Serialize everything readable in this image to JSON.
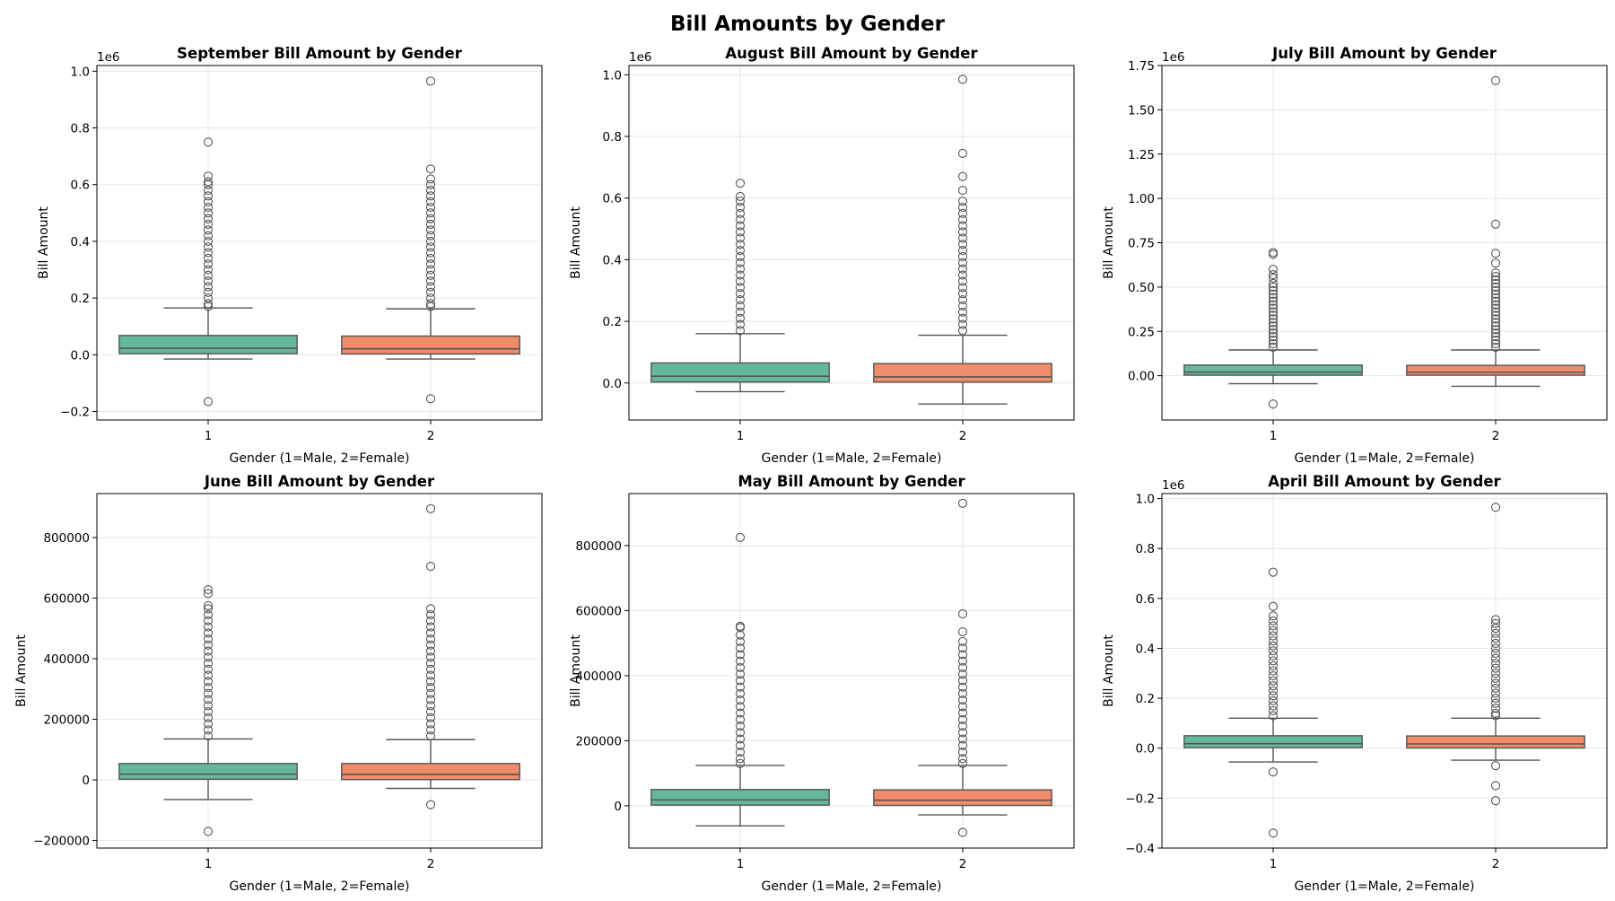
{
  "figure": {
    "title": "Bill Amounts by Gender",
    "colors": {
      "male": "#66b89b",
      "female": "#f08c6a",
      "line": "#555555",
      "grid": "#e6e6e6"
    }
  },
  "chart_data": [
    {
      "type": "box",
      "title": "September Bill Amount by Gender",
      "xlabel": "Gender (1=Male, 2=Female)",
      "ylabel": "Bill Amount",
      "offset_text": "1e6",
      "categories": [
        "1",
        "2"
      ],
      "ylim": [
        -0.23,
        1.02
      ],
      "yticks": [
        -0.2,
        0.0,
        0.2,
        0.4,
        0.6,
        0.8,
        1.0
      ],
      "ytick_labels": [
        "−0.2",
        "0.0",
        "0.2",
        "0.4",
        "0.6",
        "0.8",
        "1.0"
      ],
      "boxes": [
        {
          "name": "1",
          "q1": 0.004,
          "median": 0.023,
          "q3": 0.068,
          "whislo": -0.015,
          "whishi": 0.165,
          "fliers": [
            -0.165,
            0.75,
            0.63,
            0.61,
            0.6,
            0.58,
            0.56,
            0.54,
            0.52,
            0.5,
            0.48,
            0.46,
            0.44,
            0.42,
            0.4,
            0.38,
            0.36,
            0.34,
            0.32,
            0.3,
            0.28,
            0.26,
            0.24,
            0.22,
            0.2,
            0.18,
            0.17
          ]
        },
        {
          "name": "2",
          "q1": 0.003,
          "median": 0.021,
          "q3": 0.066,
          "whislo": -0.015,
          "whishi": 0.162,
          "fliers": [
            -0.155,
            0.965,
            0.655,
            0.62,
            0.6,
            0.58,
            0.56,
            0.54,
            0.52,
            0.5,
            0.48,
            0.46,
            0.44,
            0.42,
            0.4,
            0.38,
            0.36,
            0.34,
            0.32,
            0.3,
            0.28,
            0.26,
            0.24,
            0.22,
            0.2,
            0.18,
            0.17
          ]
        }
      ]
    },
    {
      "type": "box",
      "title": "August Bill Amount by Gender",
      "xlabel": "Gender (1=Male, 2=Female)",
      "ylabel": "Bill Amount",
      "offset_text": "1e6",
      "categories": [
        "1",
        "2"
      ],
      "ylim": [
        -0.12,
        1.03
      ],
      "yticks": [
        0.0,
        0.2,
        0.4,
        0.6,
        0.8,
        1.0
      ],
      "ytick_labels": [
        "0.0",
        "0.2",
        "0.4",
        "0.6",
        "0.8",
        "1.0"
      ],
      "boxes": [
        {
          "name": "1",
          "q1": 0.003,
          "median": 0.022,
          "q3": 0.065,
          "whislo": -0.028,
          "whishi": 0.16,
          "fliers": [
            0.648,
            0.605,
            0.59,
            0.57,
            0.55,
            0.53,
            0.51,
            0.49,
            0.47,
            0.45,
            0.43,
            0.41,
            0.39,
            0.37,
            0.35,
            0.33,
            0.31,
            0.29,
            0.27,
            0.25,
            0.23,
            0.21,
            0.19,
            0.17
          ]
        },
        {
          "name": "2",
          "q1": 0.003,
          "median": 0.02,
          "q3": 0.063,
          "whislo": -0.068,
          "whishi": 0.155,
          "fliers": [
            0.985,
            0.745,
            0.67,
            0.625,
            0.59,
            0.57,
            0.55,
            0.53,
            0.51,
            0.49,
            0.47,
            0.45,
            0.43,
            0.41,
            0.39,
            0.37,
            0.35,
            0.33,
            0.31,
            0.29,
            0.27,
            0.25,
            0.23,
            0.21,
            0.19,
            0.17
          ]
        }
      ]
    },
    {
      "type": "box",
      "title": "July Bill Amount by Gender",
      "xlabel": "Gender (1=Male, 2=Female)",
      "ylabel": "Bill Amount",
      "offset_text": "1e6",
      "categories": [
        "1",
        "2"
      ],
      "ylim": [
        -0.25,
        1.75
      ],
      "yticks": [
        0.0,
        0.25,
        0.5,
        0.75,
        1.0,
        1.25,
        1.5,
        1.75
      ],
      "ytick_labels": [
        "0.00",
        "0.25",
        "0.50",
        "0.75",
        "1.00",
        "1.25",
        "1.50",
        "1.75"
      ],
      "boxes": [
        {
          "name": "1",
          "q1": 0.003,
          "median": 0.02,
          "q3": 0.06,
          "whislo": -0.045,
          "whishi": 0.145,
          "fliers": [
            -0.16,
            0.695,
            0.685,
            0.6,
            0.57,
            0.55,
            0.52,
            0.5,
            0.48,
            0.46,
            0.44,
            0.42,
            0.4,
            0.38,
            0.36,
            0.34,
            0.32,
            0.3,
            0.28,
            0.26,
            0.24,
            0.22,
            0.2,
            0.18,
            0.16
          ]
        },
        {
          "name": "2",
          "q1": 0.003,
          "median": 0.019,
          "q3": 0.058,
          "whislo": -0.06,
          "whishi": 0.145,
          "fliers": [
            1.665,
            0.855,
            0.69,
            0.635,
            0.58,
            0.56,
            0.54,
            0.52,
            0.5,
            0.48,
            0.46,
            0.44,
            0.42,
            0.4,
            0.38,
            0.36,
            0.34,
            0.32,
            0.3,
            0.28,
            0.26,
            0.24,
            0.22,
            0.2,
            0.18,
            0.16
          ]
        }
      ]
    },
    {
      "type": "box",
      "title": "June Bill Amount by Gender",
      "xlabel": "Gender (1=Male, 2=Female)",
      "ylabel": "Bill Amount",
      "offset_text": "",
      "categories": [
        "1",
        "2"
      ],
      "ylim": [
        -225000,
        945000
      ],
      "yticks": [
        -200000,
        0,
        200000,
        400000,
        600000,
        800000
      ],
      "ytick_labels": [
        "−200000",
        "0",
        "200000",
        "400000",
        "600000",
        "800000"
      ],
      "boxes": [
        {
          "name": "1",
          "q1": 2000,
          "median": 19000,
          "q3": 54000,
          "whislo": -65000,
          "whishi": 135000,
          "fliers": [
            -170000,
            628000,
            615000,
            575000,
            565000,
            545000,
            525000,
            505000,
            485000,
            465000,
            445000,
            425000,
            405000,
            385000,
            365000,
            345000,
            325000,
            305000,
            285000,
            265000,
            245000,
            225000,
            205000,
            185000,
            165000,
            145000
          ]
        },
        {
          "name": "2",
          "q1": 1000,
          "median": 18000,
          "q3": 54000,
          "whislo": -28000,
          "whishi": 133000,
          "fliers": [
            -82000,
            895000,
            705000,
            565000,
            545000,
            525000,
            505000,
            485000,
            465000,
            445000,
            425000,
            405000,
            385000,
            365000,
            345000,
            325000,
            305000,
            285000,
            265000,
            245000,
            225000,
            205000,
            185000,
            165000,
            145000
          ]
        }
      ]
    },
    {
      "type": "box",
      "title": "May Bill Amount by Gender",
      "xlabel": "Gender (1=Male, 2=Female)",
      "ylabel": "Bill Amount",
      "offset_text": "",
      "categories": [
        "1",
        "2"
      ],
      "ylim": [
        -130000,
        960000
      ],
      "yticks": [
        0,
        200000,
        400000,
        600000,
        800000
      ],
      "ytick_labels": [
        "0",
        "200000",
        "400000",
        "600000",
        "800000"
      ],
      "boxes": [
        {
          "name": "1",
          "q1": 2000,
          "median": 18000,
          "q3": 50000,
          "whislo": -62000,
          "whishi": 124000,
          "fliers": [
            825000,
            552000,
            548000,
            525000,
            505000,
            485000,
            465000,
            445000,
            425000,
            405000,
            385000,
            365000,
            345000,
            325000,
            305000,
            285000,
            265000,
            245000,
            225000,
            205000,
            185000,
            165000,
            145000,
            130000
          ]
        },
        {
          "name": "2",
          "q1": 1000,
          "median": 17000,
          "q3": 49000,
          "whislo": -28000,
          "whishi": 124000,
          "fliers": [
            -82000,
            930000,
            590000,
            535000,
            505000,
            485000,
            465000,
            445000,
            425000,
            405000,
            385000,
            365000,
            345000,
            325000,
            305000,
            285000,
            265000,
            245000,
            225000,
            205000,
            185000,
            165000,
            145000,
            130000
          ]
        }
      ]
    },
    {
      "type": "box",
      "title": "April Bill Amount by Gender",
      "xlabel": "Gender (1=Male, 2=Female)",
      "ylabel": "Bill Amount",
      "offset_text": "1e6",
      "categories": [
        "1",
        "2"
      ],
      "ylim": [
        -0.4,
        1.02
      ],
      "yticks": [
        -0.4,
        -0.2,
        0.0,
        0.2,
        0.4,
        0.6,
        0.8,
        1.0
      ],
      "ytick_labels": [
        "−0.4",
        "−0.2",
        "0.0",
        "0.2",
        "0.4",
        "0.6",
        "0.8",
        "1.0"
      ],
      "boxes": [
        {
          "name": "1",
          "q1": 0.002,
          "median": 0.018,
          "q3": 0.05,
          "whislo": -0.055,
          "whishi": 0.12,
          "fliers": [
            -0.095,
            -0.34,
            0.705,
            0.568,
            0.53,
            0.51,
            0.49,
            0.47,
            0.45,
            0.43,
            0.41,
            0.39,
            0.37,
            0.35,
            0.33,
            0.31,
            0.29,
            0.27,
            0.25,
            0.23,
            0.21,
            0.19,
            0.17,
            0.15,
            0.13
          ]
        },
        {
          "name": "2",
          "q1": 0.001,
          "median": 0.017,
          "q3": 0.049,
          "whislo": -0.048,
          "whishi": 0.12,
          "fliers": [
            -0.07,
            -0.15,
            -0.21,
            0.965,
            0.515,
            0.5,
            0.48,
            0.46,
            0.44,
            0.42,
            0.4,
            0.38,
            0.36,
            0.34,
            0.32,
            0.3,
            0.28,
            0.26,
            0.24,
            0.22,
            0.2,
            0.18,
            0.16,
            0.14,
            0.13
          ]
        }
      ]
    }
  ]
}
